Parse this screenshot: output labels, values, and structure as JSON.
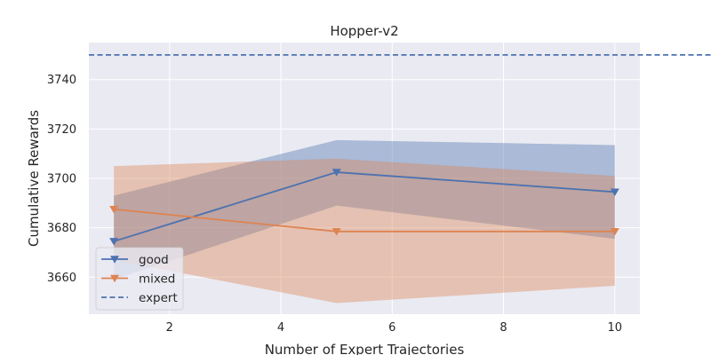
{
  "chart_data": {
    "type": "line",
    "title": "Hopper-v2",
    "xlabel": "Number of Expert Trajectories",
    "ylabel": "Cumulative Rewards",
    "xlim": [
      0.55,
      10.45
    ],
    "ylim": [
      3645,
      3755
    ],
    "xticks": [
      2,
      4,
      6,
      8,
      10
    ],
    "yticks": [
      3660,
      3680,
      3700,
      3720,
      3740
    ],
    "grid": true,
    "legend_position": "lower-left",
    "x": [
      1,
      5,
      10
    ],
    "series": [
      {
        "name": "good",
        "color": "#4c72b0",
        "marker": "triangle-down",
        "values": [
          3674.5,
          3702.5,
          3694.5
        ],
        "band_lower": [
          3659,
          3689,
          3675.5
        ],
        "band_upper": [
          3693,
          3715.5,
          3713.5
        ]
      },
      {
        "name": "mixed",
        "color": "#dd8452",
        "marker": "triangle-down",
        "values": [
          3687.5,
          3678.5,
          3678.5
        ],
        "band_lower": [
          3667,
          3649.5,
          3656.5
        ],
        "band_upper": [
          3705,
          3708,
          3701
        ]
      }
    ],
    "reference_lines": [
      {
        "name": "expert",
        "y": 3750,
        "color": "#4c72b0",
        "style": "dashed"
      }
    ]
  }
}
